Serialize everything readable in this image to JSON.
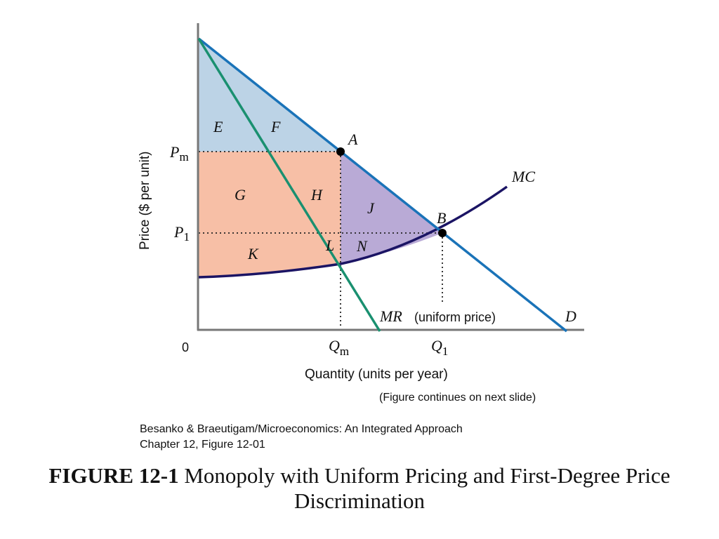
{
  "diagram": {
    "labels": {
      "origin": "0",
      "y_axis_title": "Price ($ per unit)",
      "x_axis_title": "Quantity (units per year)",
      "pm_main": "P",
      "pm_sub": "m",
      "p1_main": "P",
      "p1_sub": "1",
      "qm_main": "Q",
      "qm_sub": "m",
      "q1_main": "Q",
      "q1_sub": "1",
      "point_a": "A",
      "point_b": "B",
      "curve_mc": "MC",
      "curve_d": "D",
      "curve_mr": "MR",
      "curve_mr_note": "(uniform price)",
      "areas": {
        "e": "E",
        "f": "F",
        "g": "G",
        "h": "H",
        "j": "J",
        "k": "K",
        "l": "L",
        "n": "N"
      }
    },
    "colors": {
      "demand": "#1a73b8",
      "mr": "#1a9070",
      "mc": "#1b1464",
      "area_blue": "#bcd3e6",
      "area_salmon": "#f7bfa6",
      "area_purple": "#b9aad6",
      "axis": "#777777"
    }
  },
  "notes": {
    "continues": "(Figure continues on next slide)",
    "source_line1": "Besanko & Braeutigam/Microeconomics: An Integrated Approach",
    "source_line2": "Chapter 12, Figure 12-01"
  },
  "caption": {
    "bold": "FIGURE 12-1",
    "text": " Monopoly with Uniform Pricing and First-Degree Price Discrimination"
  }
}
